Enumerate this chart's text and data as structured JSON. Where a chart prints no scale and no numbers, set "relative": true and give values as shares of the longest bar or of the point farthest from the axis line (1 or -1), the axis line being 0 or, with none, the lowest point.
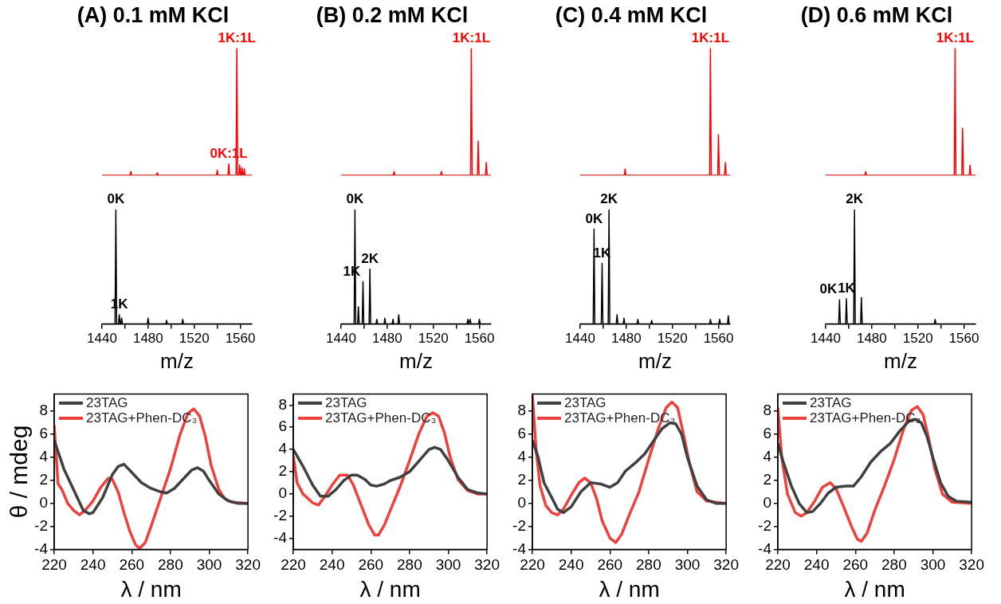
{
  "chart_data": [
    {
      "type": "line",
      "title": "(A) 0.1 mM KCl",
      "relative": true,
      "tick_labels": false,
      "xlim": [
        1440,
        1570
      ],
      "marker": "none",
      "series": [
        {
          "color": "#ff0000",
          "x": [
            1440,
            1464.3,
            1465,
            1465.7,
            1487.3,
            1488,
            1488.7,
            1539.3,
            1540,
            1540.7,
            1549.3,
            1550,
            1550.7,
            1556.3,
            1557,
            1557.7,
            1558.8,
            1559.5,
            1560.2,
            1560.8,
            1561.5,
            1562.2,
            1562.8,
            1563.5,
            1564.2,
            1570
          ],
          "values": [
            0,
            0,
            0.03,
            0,
            0,
            0.02,
            0,
            0,
            0.04,
            0,
            0,
            0.09,
            0,
            0,
            1,
            0,
            0,
            0.08,
            0,
            0,
            0.06,
            0,
            0,
            0.05,
            0,
            0
          ]
        }
      ],
      "annotations": [
        {
          "text": "0K:1L",
          "x": 1550,
          "y": 0.09
        },
        {
          "text": "1K:1L",
          "x": 1557,
          "y": 1
        }
      ]
    },
    {
      "type": "line",
      "title": "(B) 0.2 mM KCl",
      "relative": true,
      "tick_labels": false,
      "xlim": [
        1440,
        1570
      ],
      "marker": "none",
      "series": [
        {
          "color": "#ff0000",
          "x": [
            1440,
            1485.3,
            1486,
            1486.7,
            1526.3,
            1527,
            1527.7,
            1552.3,
            1553,
            1553.7,
            1558.3,
            1559,
            1559.7,
            1565.3,
            1566,
            1566.7,
            1570
          ],
          "values": [
            0,
            0,
            0.03,
            0,
            0,
            0.03,
            0,
            0,
            1,
            0,
            0,
            0.27,
            0,
            0,
            0.1,
            0,
            0
          ]
        }
      ],
      "annotations": [
        {
          "text": "1K:1L",
          "x": 1553,
          "y": 1
        }
      ]
    },
    {
      "type": "line",
      "title": "(C) 0.4 mM KCl",
      "relative": true,
      "tick_labels": false,
      "xlim": [
        1440,
        1570
      ],
      "marker": "none",
      "series": [
        {
          "color": "#ff0000",
          "x": [
            1440,
            1478.3,
            1479,
            1479.7,
            1552.3,
            1553,
            1553.7,
            1559.3,
            1560,
            1560.7,
            1565.3,
            1566,
            1566.7,
            1570
          ],
          "values": [
            0,
            0,
            0.05,
            0,
            0,
            1,
            0,
            0,
            0.32,
            0,
            0,
            0.1,
            0,
            0
          ]
        }
      ],
      "annotations": [
        {
          "text": "1K:1L",
          "x": 1553,
          "y": 1
        }
      ]
    },
    {
      "type": "line",
      "title": "(D) 0.6 mM KCl",
      "relative": true,
      "tick_labels": false,
      "xlim": [
        1440,
        1570
      ],
      "marker": "none",
      "series": [
        {
          "color": "#ff0000",
          "x": [
            1440,
            1474,
            1474.7,
            1475.4,
            1551.6,
            1552.3,
            1553,
            1558.1,
            1558.8,
            1559.5,
            1564.6,
            1565.3,
            1566,
            1570
          ],
          "values": [
            0,
            0,
            0.03,
            0,
            0,
            1,
            0,
            0,
            0.37,
            0,
            0,
            0.08,
            0,
            0
          ]
        }
      ],
      "annotations": [
        {
          "text": "1K:1L",
          "x": 1552.3,
          "y": 1
        }
      ]
    },
    {
      "type": "line",
      "xlabel": "m/z",
      "relative": true,
      "tick_labels": "x",
      "xlim": [
        1440,
        1570
      ],
      "xticks": [
        1440,
        {
          "value": 1460,
          "label": null
        },
        1480,
        {
          "value": 1500,
          "label": null
        },
        1520,
        {
          "value": 1540,
          "label": null
        },
        1560
      ],
      "marker": "none",
      "series": [
        {
          "color": "#000000",
          "x": [
            1440,
            1451.3,
            1452,
            1452.7,
            1454.3,
            1455,
            1455.7,
            1456.3,
            1457,
            1457.7,
            1479.3,
            1480,
            1480.7,
            1495.3,
            1496,
            1496.7,
            1509.3,
            1510,
            1510.7,
            1570
          ],
          "values": [
            0,
            0,
            1,
            0,
            0,
            0.08,
            0,
            0,
            0.05,
            0,
            0,
            0.05,
            0,
            0,
            0.03,
            0,
            0,
            0.04,
            0,
            0
          ]
        }
      ],
      "annotations": [
        {
          "text": "0K",
          "x": 1452,
          "y": 1
        },
        {
          "text": "1K",
          "x": 1455,
          "y": 0.08
        }
      ]
    },
    {
      "type": "line",
      "xlabel": "m/z",
      "relative": true,
      "tick_labels": "x",
      "xlim": [
        1440,
        1570
      ],
      "xticks": [
        1440,
        {
          "value": 1460,
          "label": null
        },
        1480,
        {
          "value": 1500,
          "label": null
        },
        1520,
        {
          "value": 1540,
          "label": null
        },
        1560
      ],
      "marker": "none",
      "series": [
        {
          "color": "#000000",
          "x": [
            1440,
            1451.3,
            1452,
            1452.7,
            1454.3,
            1455,
            1455.7,
            1458.3,
            1459,
            1459.7,
            1464.3,
            1465,
            1465.7,
            1470.3,
            1471,
            1471.7,
            1477.3,
            1478,
            1478.7,
            1484.3,
            1485,
            1485.7,
            1489.3,
            1490,
            1490.7,
            1549.3,
            1550,
            1550.7,
            1551.3,
            1552,
            1552.7,
            1559.3,
            1560,
            1560.7,
            1570
          ],
          "values": [
            0,
            0,
            1,
            0,
            0,
            0.15,
            0,
            0,
            0.37,
            0,
            0,
            0.48,
            0,
            0,
            0.04,
            0,
            0,
            0.05,
            0,
            0,
            0.04,
            0,
            0,
            0.08,
            0,
            0,
            0.04,
            0,
            0,
            0.04,
            0,
            0,
            0.04,
            0,
            0
          ]
        }
      ],
      "annotations": [
        {
          "text": "0K",
          "x": 1452,
          "y": 1
        },
        {
          "text": "1K",
          "x": 1459,
          "y": 0.37
        },
        {
          "text": "2K",
          "x": 1465,
          "y": 0.48
        }
      ]
    },
    {
      "type": "line",
      "xlabel": "m/z",
      "relative": true,
      "tick_labels": "x",
      "xlim": [
        1440,
        1570
      ],
      "xticks": [
        1440,
        {
          "value": 1460,
          "label": null
        },
        1480,
        {
          "value": 1500,
          "label": null
        },
        1520,
        {
          "value": 1540,
          "label": null
        },
        1560
      ],
      "marker": "none",
      "series": [
        {
          "color": "#000000",
          "x": [
            1440,
            1451.3,
            1452,
            1452.7,
            1458.3,
            1459,
            1459.7,
            1464.3,
            1465,
            1465.7,
            1471.3,
            1472,
            1472.7,
            1477.3,
            1478,
            1478.7,
            1489.3,
            1490,
            1490.7,
            1501.3,
            1502,
            1502.7,
            1552.3,
            1553,
            1553.7,
            1560.3,
            1561,
            1561.7,
            1567.8,
            1568.5,
            1569.2,
            1570
          ],
          "values": [
            0,
            0,
            0.83,
            0,
            0,
            0.53,
            0,
            0,
            1,
            0,
            0,
            0.08,
            0,
            0,
            0.05,
            0,
            0,
            0.04,
            0,
            0,
            0.03,
            0,
            0,
            0.04,
            0,
            0,
            0.04,
            0,
            0,
            0.07,
            0,
            0
          ]
        }
      ],
      "annotations": [
        {
          "text": "0K",
          "x": 1452,
          "y": 0.83
        },
        {
          "text": "1K",
          "x": 1459,
          "y": 0.53
        },
        {
          "text": "2K",
          "x": 1465,
          "y": 1
        }
      ]
    },
    {
      "type": "line",
      "xlabel": "m/z",
      "relative": true,
      "tick_labels": "x",
      "xlim": [
        1440,
        1570
      ],
      "xticks": [
        1440,
        {
          "value": 1460,
          "label": null
        },
        1480,
        {
          "value": 1500,
          "label": null
        },
        1520,
        {
          "value": 1540,
          "label": null
        },
        1560
      ],
      "marker": "none",
      "series": [
        {
          "color": "#000000",
          "x": [
            1440,
            1451.3,
            1452,
            1452.7,
            1457.3,
            1458,
            1458.7,
            1464.3,
            1465,
            1465.7,
            1470.3,
            1471,
            1471.7,
            1534.3,
            1535,
            1535.7,
            1570
          ],
          "values": [
            0,
            0,
            0.21,
            0,
            0,
            0.22,
            0,
            0,
            1,
            0,
            0,
            0.23,
            0,
            0,
            0.04,
            0,
            0
          ]
        }
      ],
      "annotations": [
        {
          "text": "0K",
          "x": 1452,
          "y": 0.21
        },
        {
          "text": "1K",
          "x": 1458,
          "y": 0.22
        },
        {
          "text": "2K",
          "x": 1465,
          "y": 1
        }
      ]
    },
    {
      "type": "line",
      "xlabel": "λ / nm",
      "ylabel": "θ / mdeg",
      "xlim": [
        220,
        320
      ],
      "xticks": [
        220,
        240,
        260,
        280,
        300,
        320
      ],
      "ylim": [
        -4,
        9.5
      ],
      "yticks": [
        -4,
        -2,
        0,
        2,
        4,
        6,
        8
      ],
      "legend": "top left",
      "marker": "none",
      "series": [
        {
          "name": "23TAG",
          "color": "#404040",
          "x": [
            220,
            225,
            230,
            235,
            238,
            240,
            245,
            250,
            253,
            256,
            260,
            265,
            270,
            275,
            278,
            282,
            287,
            291,
            294,
            297,
            300,
            305,
            310,
            315,
            320
          ],
          "values": [
            5.5,
            3.0,
            1.2,
            -0.6,
            -0.9,
            -0.8,
            0.5,
            2.5,
            3.2,
            3.4,
            2.7,
            1.8,
            1.3,
            1.0,
            0.9,
            1.3,
            2.2,
            2.9,
            3.1,
            2.8,
            2.0,
            0.8,
            0.2,
            0.0,
            0.0
          ]
        },
        {
          "name": "23TAG+Phen-DC₃",
          "color": "#ef4040",
          "x": [
            220,
            222,
            224,
            227,
            230,
            233,
            236,
            240,
            244,
            248,
            250,
            253,
            256,
            259,
            262,
            264,
            267,
            270,
            275,
            280,
            285,
            289,
            292,
            295,
            298,
            301,
            305,
            308,
            312,
            320
          ],
          "values": [
            6.8,
            1.7,
            1.2,
            0.0,
            -0.6,
            -1.0,
            -0.6,
            0.2,
            1.4,
            2.2,
            2.1,
            1.0,
            -0.8,
            -2.4,
            -3.6,
            -3.9,
            -3.4,
            -2.0,
            0.5,
            3.0,
            6.0,
            7.8,
            8.2,
            7.6,
            5.8,
            3.3,
            1.2,
            0.4,
            0.1,
            0.0
          ]
        }
      ]
    },
    {
      "type": "line",
      "xlabel": "λ / nm",
      "xlim": [
        220,
        320
      ],
      "xticks": [
        220,
        240,
        260,
        280,
        300,
        320
      ],
      "ylim": [
        -5,
        9
      ],
      "yticks": [
        -4,
        -2,
        0,
        2,
        4,
        6,
        8
      ],
      "legend": "top left",
      "marker": "none",
      "series": [
        {
          "name": "23TAG",
          "color": "#404040",
          "x": [
            220,
            225,
            230,
            234,
            238,
            242,
            246,
            250,
            253,
            257,
            260,
            263,
            267,
            270,
            275,
            280,
            285,
            290,
            293,
            296,
            300,
            305,
            310,
            315,
            320
          ],
          "values": [
            4.0,
            2.5,
            0.8,
            -0.2,
            -0.2,
            0.4,
            1.2,
            1.7,
            1.7,
            1.3,
            0.8,
            0.7,
            0.9,
            1.2,
            1.5,
            2.0,
            3.0,
            4.0,
            4.2,
            4.0,
            3.0,
            1.5,
            0.4,
            0.1,
            0.0
          ]
        },
        {
          "name": "23TAG+Phen-DC₃",
          "color": "#ef4040",
          "x": [
            220,
            222,
            225,
            230,
            233,
            236,
            240,
            244,
            248,
            251,
            255,
            259,
            262,
            264,
            267,
            270,
            275,
            280,
            285,
            289,
            292,
            295,
            298,
            301,
            305,
            310,
            315,
            320
          ],
          "values": [
            3.4,
            1.0,
            0.0,
            -0.8,
            -1.0,
            -0.3,
            0.8,
            1.7,
            1.7,
            0.8,
            -1.0,
            -2.8,
            -3.7,
            -3.7,
            -2.8,
            -1.5,
            0.6,
            3.0,
            5.5,
            7.0,
            7.3,
            7.0,
            5.5,
            3.3,
            1.3,
            0.3,
            0.0,
            0.0
          ]
        }
      ]
    },
    {
      "type": "line",
      "xlabel": "λ / nm",
      "xlim": [
        220,
        320
      ],
      "xticks": [
        220,
        240,
        260,
        280,
        300,
        320
      ],
      "ylim": [
        -4,
        9.5
      ],
      "yticks": [
        -4,
        -2,
        0,
        2,
        4,
        6,
        8
      ],
      "legend": "top left",
      "marker": "none",
      "series": [
        {
          "name": "23TAG",
          "color": "#404040",
          "x": [
            220,
            223,
            226,
            230,
            233,
            236,
            240,
            245,
            250,
            255,
            260,
            264,
            268,
            273,
            278,
            282,
            287,
            291,
            294,
            297,
            300,
            305,
            310,
            315,
            320
          ],
          "values": [
            5.5,
            4.0,
            1.8,
            0.5,
            -0.5,
            -0.8,
            -0.3,
            1.0,
            1.8,
            1.7,
            1.4,
            1.8,
            2.8,
            3.5,
            4.3,
            5.3,
            6.5,
            7.0,
            6.9,
            6.0,
            4.0,
            1.5,
            0.3,
            0.0,
            0.0
          ]
        },
        {
          "name": "23TAG+Phen-DC₃",
          "color": "#ef4040",
          "x": [
            220,
            222,
            224,
            227,
            230,
            233,
            236,
            240,
            244,
            247,
            250,
            253,
            256,
            260,
            263,
            266,
            270,
            275,
            280,
            285,
            289,
            292,
            295,
            298,
            301,
            305,
            310,
            320
          ],
          "values": [
            9.4,
            4.5,
            1.5,
            -0.2,
            -0.8,
            -1.0,
            -0.5,
            0.7,
            1.8,
            2.2,
            1.8,
            0.5,
            -1.5,
            -3.0,
            -3.4,
            -2.7,
            -1.0,
            1.0,
            3.8,
            6.5,
            8.3,
            8.8,
            8.3,
            6.0,
            3.5,
            1.0,
            0.2,
            0.0
          ]
        }
      ]
    },
    {
      "type": "line",
      "xlabel": "λ / nm",
      "xlim": [
        220,
        320
      ],
      "xticks": [
        220,
        240,
        260,
        280,
        300,
        320
      ],
      "ylim": [
        -4,
        9.5
      ],
      "yticks": [
        -4,
        -2,
        0,
        2,
        4,
        6,
        8
      ],
      "legend": "top left",
      "marker": "none",
      "series": [
        {
          "name": "23TAG",
          "color": "#404040",
          "x": [
            220,
            223,
            227,
            231,
            235,
            238,
            242,
            246,
            250,
            255,
            259,
            263,
            268,
            273,
            278,
            283,
            288,
            291,
            294,
            297,
            300,
            304,
            308,
            312,
            320
          ],
          "values": [
            5.2,
            3.5,
            1.5,
            0.0,
            -0.8,
            -0.7,
            0.0,
            0.9,
            1.4,
            1.5,
            1.5,
            2.3,
            3.6,
            4.5,
            5.2,
            6.3,
            7.2,
            7.3,
            7.0,
            5.8,
            4.0,
            1.8,
            0.6,
            0.2,
            0.1
          ]
        },
        {
          "name": "23TAG+Phen-DC₃",
          "color": "#ef4040",
          "x": [
            220,
            222,
            225,
            229,
            232,
            235,
            239,
            243,
            247,
            250,
            254,
            258,
            261,
            263,
            266,
            270,
            275,
            280,
            285,
            289,
            292,
            295,
            298,
            301,
            305,
            310,
            320
          ],
          "values": [
            8.3,
            4.0,
            0.8,
            -0.8,
            -1.1,
            -0.8,
            0.2,
            1.4,
            1.8,
            1.3,
            -0.3,
            -2.0,
            -3.1,
            -3.3,
            -2.6,
            -0.6,
            1.5,
            3.8,
            6.5,
            8.1,
            8.4,
            7.7,
            5.5,
            3.0,
            0.8,
            0.1,
            0.0
          ]
        }
      ]
    }
  ]
}
